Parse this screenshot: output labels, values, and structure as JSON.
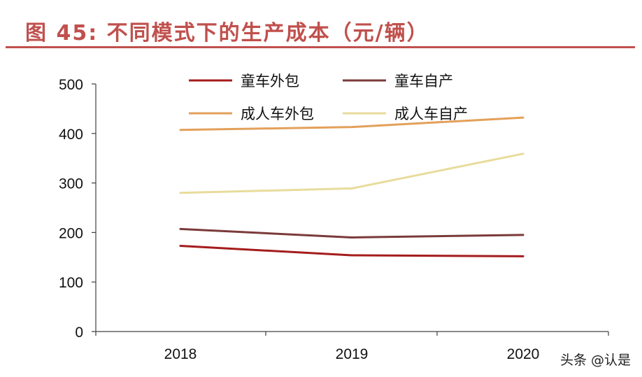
{
  "title": "图 45:  不同模式下的生产成本（元/辆）",
  "watermark": "头条 @认是",
  "chart_data": {
    "type": "line",
    "title": "",
    "xlabel": "",
    "ylabel": "",
    "categories": [
      "2018",
      "2019",
      "2020"
    ],
    "ylim": [
      0,
      500
    ],
    "yticks": [
      0,
      100,
      200,
      300,
      400,
      500
    ],
    "grid": false,
    "legend_position": "top-center",
    "series": [
      {
        "name": "童车外包",
        "values": [
          173,
          154,
          152
        ],
        "color": "#a51c1c"
      },
      {
        "name": "童车自产",
        "values": [
          207,
          190,
          195
        ],
        "color": "#7b3a3a"
      },
      {
        "name": "成人车外包",
        "values": [
          407,
          413,
          432
        ],
        "color": "#e3a05a"
      },
      {
        "name": "成人车自产",
        "values": [
          280,
          289,
          359
        ],
        "color": "#e8dc9c"
      }
    ]
  }
}
